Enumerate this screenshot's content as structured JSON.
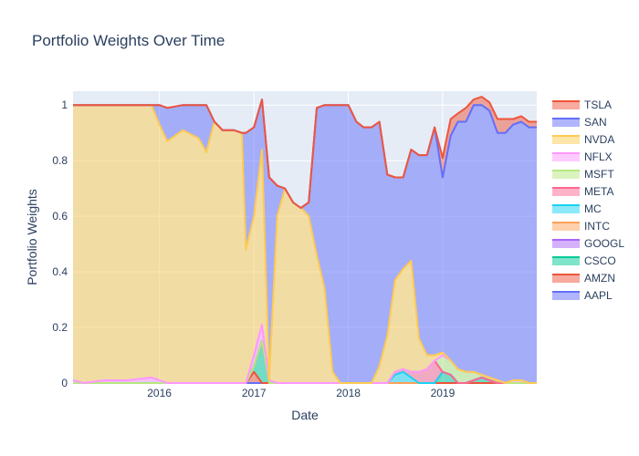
{
  "chart_data": {
    "type": "area",
    "title": "Portfolio Weights Over Time",
    "xlabel": "Date",
    "ylabel": "Portfolio Weights",
    "stacked": true,
    "grid": true,
    "legend_position": "right",
    "ylim": [
      0,
      1.05
    ],
    "xlim": [
      "2015-02-01",
      "2019-12-31"
    ],
    "x_ticks": [
      "2016",
      "2017",
      "2018",
      "2019"
    ],
    "y_ticks": [
      "0",
      "0.2",
      "0.4",
      "0.6",
      "0.8",
      "1"
    ],
    "x": [
      "2015-02-01",
      "2015-03-15",
      "2015-06-01",
      "2015-09-01",
      "2015-12-01",
      "2016-01-01",
      "2016-02-01",
      "2016-04-01",
      "2016-06-01",
      "2016-07-01",
      "2016-08-01",
      "2016-09-01",
      "2016-10-15",
      "2016-11-15",
      "2016-12-01",
      "2017-01-01",
      "2017-02-01",
      "2017-03-01",
      "2017-04-01",
      "2017-05-01",
      "2017-06-01",
      "2017-07-01",
      "2017-08-01",
      "2017-09-01",
      "2017-10-01",
      "2017-11-01",
      "2017-12-01",
      "2018-01-01",
      "2018-02-01",
      "2018-03-01",
      "2018-04-01",
      "2018-05-01",
      "2018-06-01",
      "2018-07-01",
      "2018-08-01",
      "2018-09-01",
      "2018-10-01",
      "2018-11-01",
      "2018-12-01",
      "2019-01-01",
      "2019-02-01",
      "2019-03-01",
      "2019-04-01",
      "2019-05-01",
      "2019-06-01",
      "2019-07-01",
      "2019-08-01",
      "2019-09-01",
      "2019-10-01",
      "2019-11-01",
      "2019-12-01",
      "2019-12-31"
    ],
    "series": [
      {
        "name": "AAPL",
        "values": [
          0,
          0,
          0,
          0,
          0,
          0,
          0,
          0,
          0,
          0,
          0,
          0,
          0,
          0,
          0,
          0,
          0,
          0,
          0,
          0,
          0,
          0,
          0,
          0,
          0,
          0,
          0,
          0,
          0,
          0,
          0,
          0,
          0,
          0,
          0,
          0,
          0,
          0,
          0,
          0,
          0,
          0,
          0,
          0,
          0,
          0,
          0,
          0,
          0,
          0,
          0,
          0
        ]
      },
      {
        "name": "AMZN",
        "values": [
          0,
          0,
          0,
          0,
          0,
          0,
          0,
          0,
          0,
          0,
          0,
          0,
          0,
          0,
          0,
          0.04,
          0,
          0,
          0,
          0,
          0,
          0,
          0,
          0,
          0,
          0,
          0,
          0,
          0,
          0,
          0,
          0,
          0,
          0,
          0,
          0,
          0,
          0,
          0,
          0,
          0,
          0,
          0,
          0,
          0,
          0,
          0,
          0,
          0,
          0,
          0,
          0
        ]
      },
      {
        "name": "CSCO",
        "values": [
          0,
          0,
          0,
          0,
          0,
          0,
          0,
          0,
          0,
          0,
          0,
          0,
          0,
          0,
          0,
          0.02,
          0.15,
          0,
          0,
          0,
          0,
          0,
          0,
          0,
          0,
          0,
          0,
          0,
          0,
          0,
          0,
          0,
          0,
          0,
          0,
          0,
          0,
          0,
          0,
          0.04,
          0.03,
          0,
          0,
          0.01,
          0.02,
          0.01,
          0,
          0,
          0,
          0,
          0,
          0
        ]
      },
      {
        "name": "GOOGL",
        "values": [
          0,
          0,
          0,
          0,
          0,
          0,
          0,
          0,
          0,
          0,
          0,
          0,
          0,
          0,
          0,
          0,
          0,
          0,
          0,
          0,
          0,
          0,
          0,
          0,
          0,
          0,
          0,
          0,
          0,
          0,
          0,
          0,
          0,
          0,
          0,
          0,
          0,
          0,
          0,
          0,
          0,
          0,
          0,
          0,
          0,
          0,
          0,
          0,
          0,
          0,
          0,
          0
        ]
      },
      {
        "name": "INTC",
        "values": [
          0,
          0,
          0,
          0,
          0,
          0,
          0,
          0,
          0,
          0,
          0,
          0,
          0,
          0,
          0,
          0,
          0,
          0,
          0,
          0,
          0,
          0,
          0,
          0,
          0,
          0,
          0,
          0,
          0,
          0,
          0,
          0,
          0,
          0,
          0,
          0,
          0,
          0,
          0,
          0,
          0,
          0,
          0,
          0,
          0,
          0,
          0,
          0,
          0,
          0,
          0,
          0
        ]
      },
      {
        "name": "MC",
        "values": [
          0,
          0,
          0,
          0,
          0,
          0,
          0,
          0,
          0,
          0,
          0,
          0,
          0,
          0,
          0,
          0,
          0,
          0,
          0,
          0,
          0,
          0,
          0,
          0,
          0,
          0,
          0,
          0,
          0,
          0,
          0,
          0,
          0,
          0.03,
          0.04,
          0.02,
          0,
          0,
          0,
          0,
          0,
          0,
          0,
          0,
          0,
          0,
          0,
          0,
          0,
          0,
          0,
          0
        ]
      },
      {
        "name": "META",
        "values": [
          0,
          0,
          0,
          0,
          0,
          0,
          0,
          0,
          0,
          0,
          0,
          0,
          0,
          0,
          0,
          0,
          0,
          0,
          0,
          0,
          0,
          0,
          0,
          0,
          0,
          0,
          0,
          0,
          0,
          0,
          0,
          0,
          0,
          0.01,
          0.01,
          0.02,
          0.04,
          0.05,
          0.08,
          0,
          0,
          0,
          0,
          0,
          0,
          0,
          0,
          0,
          0,
          0,
          0,
          0
        ]
      },
      {
        "name": "MSFT",
        "values": [
          0,
          0,
          0,
          0,
          0,
          0,
          0,
          0,
          0,
          0,
          0,
          0,
          0,
          0,
          0,
          0,
          0,
          0,
          0,
          0,
          0,
          0,
          0,
          0,
          0,
          0,
          0,
          0,
          0,
          0,
          0,
          0,
          0,
          0,
          0,
          0,
          0,
          0,
          0,
          0.06,
          0.05,
          0.05,
          0.04,
          0.03,
          0.01,
          0.01,
          0.01,
          0,
          0,
          0,
          0,
          0
        ]
      },
      {
        "name": "NFLX",
        "values": [
          0.01,
          0,
          0.01,
          0.01,
          0.02,
          0.01,
          0,
          0,
          0,
          0,
          0,
          0,
          0,
          0,
          0,
          0.04,
          0.06,
          0.01,
          0,
          0,
          0,
          0,
          0,
          0,
          0,
          0,
          0,
          0,
          0,
          0,
          0,
          0,
          0,
          0,
          0,
          0,
          0,
          0,
          0,
          0,
          0,
          0,
          0,
          0,
          0,
          0,
          0,
          0,
          0.01,
          0.01,
          0,
          0
        ]
      },
      {
        "name": "NVDA",
        "values": [
          0.99,
          1.0,
          0.99,
          0.99,
          0.98,
          0.92,
          0.87,
          0.91,
          0.88,
          0.83,
          0.94,
          0.91,
          0.91,
          0.9,
          0.48,
          0.5,
          0.63,
          0,
          0.6,
          0.7,
          0.65,
          0.63,
          0.6,
          0.46,
          0.34,
          0.04,
          0,
          0,
          0,
          0,
          0,
          0.06,
          0.17,
          0.33,
          0.36,
          0.4,
          0.12,
          0.05,
          0.02,
          0.01,
          0,
          0,
          0,
          0,
          0,
          0,
          0,
          0,
          0,
          0,
          0,
          0
        ]
      },
      {
        "name": "SAN",
        "values": [
          0,
          0,
          0,
          0,
          0,
          0.07,
          0.12,
          0.09,
          0.12,
          0.17,
          0,
          0,
          0,
          0,
          0.42,
          0.32,
          0.18,
          0.73,
          0.11,
          0,
          0,
          0,
          0.05,
          0.53,
          0.66,
          0.96,
          1.0,
          1.0,
          0.94,
          0.92,
          0.92,
          0.88,
          0.58,
          0.37,
          0.33,
          0.4,
          0.66,
          0.72,
          0.82,
          0.63,
          0.81,
          0.89,
          0.9,
          0.96,
          0.97,
          0.96,
          0.89,
          0.9,
          0.92,
          0.93,
          0.92,
          0.92
        ]
      },
      {
        "name": "TSLA",
        "values": [
          0,
          0,
          0,
          0,
          0,
          0,
          0,
          0,
          0,
          0,
          0,
          0,
          0,
          0,
          0,
          0,
          0,
          0,
          0,
          0,
          0,
          0,
          0,
          0,
          0,
          0,
          0,
          0,
          0,
          0,
          0,
          0,
          0,
          0,
          0,
          0,
          0,
          0,
          0,
          0.07,
          0.06,
          0.03,
          0.05,
          0.02,
          0.03,
          0.03,
          0.05,
          0.05,
          0.02,
          0.02,
          0.02,
          0.02
        ]
      }
    ]
  },
  "colors": {
    "AAPL": "#636efa",
    "AMZN": "#ef553b",
    "CSCO": "#00cc96",
    "GOOGL": "#ab63fa",
    "INTC": "#ffa15a",
    "MC": "#19d3f3",
    "META": "#ff6692",
    "MSFT": "#b6e880",
    "NFLX": "#ff97ff",
    "NVDA": "#fecb52",
    "SAN": "#636efa",
    "TSLA": "#ef553b"
  },
  "legend_order": [
    "TSLA",
    "SAN",
    "NVDA",
    "NFLX",
    "MSFT",
    "META",
    "MC",
    "INTC",
    "GOOGL",
    "CSCO",
    "AMZN",
    "AAPL"
  ],
  "plot_background": "#e5ecf6"
}
